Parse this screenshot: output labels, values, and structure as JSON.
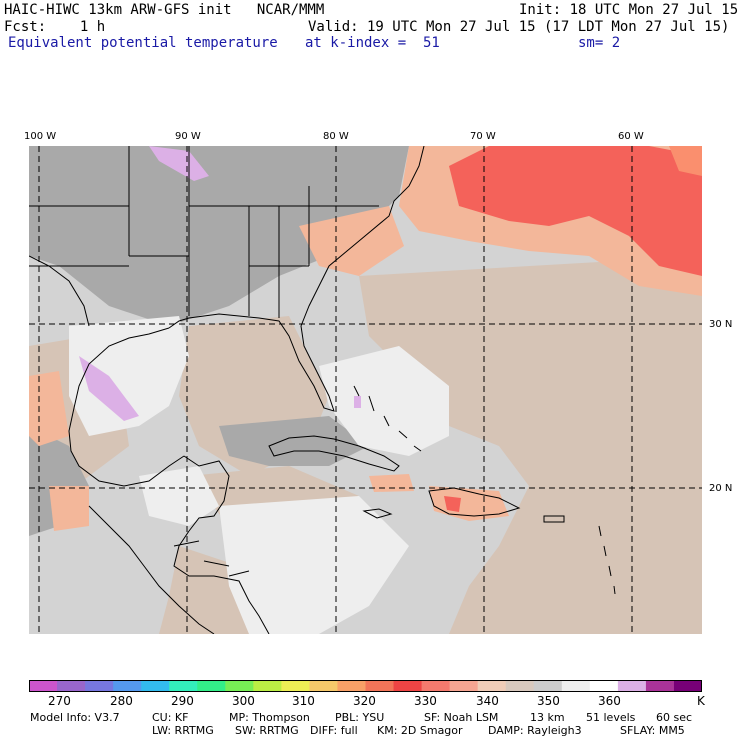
{
  "header": {
    "line1_left": "HAIC-HIWC 13km ARW-GFS init   NCAR/MMM",
    "line1_right": "Init: 18 UTC Mon 27 Jul 15",
    "line2_left": "Fcst:    1 h",
    "line2_right": "Valid: 19 UTC Mon 27 Jul 15 (17 LDT Mon 27 Jul 15)",
    "line3_left": "Equivalent potential temperature",
    "line3_mid": "at k-index =  51",
    "line3_right": "sm= 2"
  },
  "map": {
    "lon_labels": [
      "100 W",
      "90 W",
      "80 W",
      "70 W",
      "60 W"
    ],
    "lat_labels": [
      "30 N",
      "20 N"
    ],
    "colors": {
      "land_gray": "#a9a9a9",
      "light_gray": "#d3d3d3",
      "near_white": "#eeeeee",
      "tan": "#d6c4b6",
      "peach": "#f3b79a",
      "salmon": "#fa8f6e",
      "red": "#f4625a",
      "lavender": "#dcb0e6",
      "magenta": "#cc55cc"
    }
  },
  "legend": {
    "colors": [
      "#cc55cc",
      "#9966cc",
      "#7777e0",
      "#5599ee",
      "#33bbee",
      "#33eebb",
      "#33ee88",
      "#77ee55",
      "#bbee44",
      "#eeee55",
      "#f6c86a",
      "#f8a067",
      "#f27559",
      "#ee4444",
      "#f47a6e",
      "#f6a592",
      "#f0cdb8",
      "#d8c9be",
      "#cccccc",
      "#eeeeee",
      "#ffffff",
      "#dcb0e6",
      "#aa3399",
      "#770077"
    ],
    "labels": [
      "270",
      "280",
      "290",
      "300",
      "310",
      "320",
      "330",
      "340",
      "350",
      "360"
    ],
    "unit": "K"
  },
  "footer": {
    "line1": [
      "Model Info: V3.7",
      "CU: KF",
      "MP: Thompson",
      "PBL: YSU",
      "SF: Noah LSM",
      "13 km",
      "51 levels",
      "60 sec"
    ],
    "line2": [
      "LW: RRTMG",
      "SW: RRTMG",
      "DIFF: full",
      "KM: 2D Smagor",
      "DAMP: Rayleigh3",
      "SFLAY: MM5"
    ]
  }
}
